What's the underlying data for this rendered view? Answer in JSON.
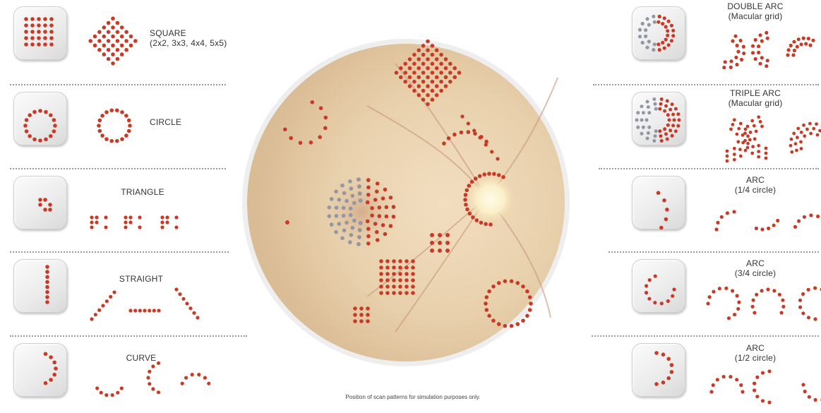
{
  "colors": {
    "dot_red": "#c93a26",
    "dot_gray": "#9297a6",
    "fundus_base": "#e9d4b4",
    "optic_disc": "#fff6da"
  },
  "patterns_left": [
    {
      "name": "square",
      "label": "SQUARE",
      "sublabel": "(2x2, 3x3, 4x4, 5x5)"
    },
    {
      "name": "circle",
      "label": "CIRCLE",
      "sublabel": ""
    },
    {
      "name": "triangle",
      "label": "TRIANGLE",
      "sublabel": ""
    },
    {
      "name": "straight",
      "label": "STRAIGHT",
      "sublabel": ""
    },
    {
      "name": "curve",
      "label": "CURVE",
      "sublabel": ""
    }
  ],
  "patterns_right": [
    {
      "name": "double-arc",
      "label": "DOUBLE ARC",
      "sublabel": "(Macular grid)"
    },
    {
      "name": "triple-arc",
      "label": "TRIPLE ARC",
      "sublabel": "(Macular grid)"
    },
    {
      "name": "arc-quarter",
      "label": "ARC",
      "sublabel": "(1/4 circle)"
    },
    {
      "name": "arc-three-quarter",
      "label": "ARC",
      "sublabel": "(3/4 circle)"
    },
    {
      "name": "arc-half",
      "label": "ARC",
      "sublabel": "(1/2 circle)"
    }
  ],
  "caption": "Position of scan patterns for simulation purposes only."
}
